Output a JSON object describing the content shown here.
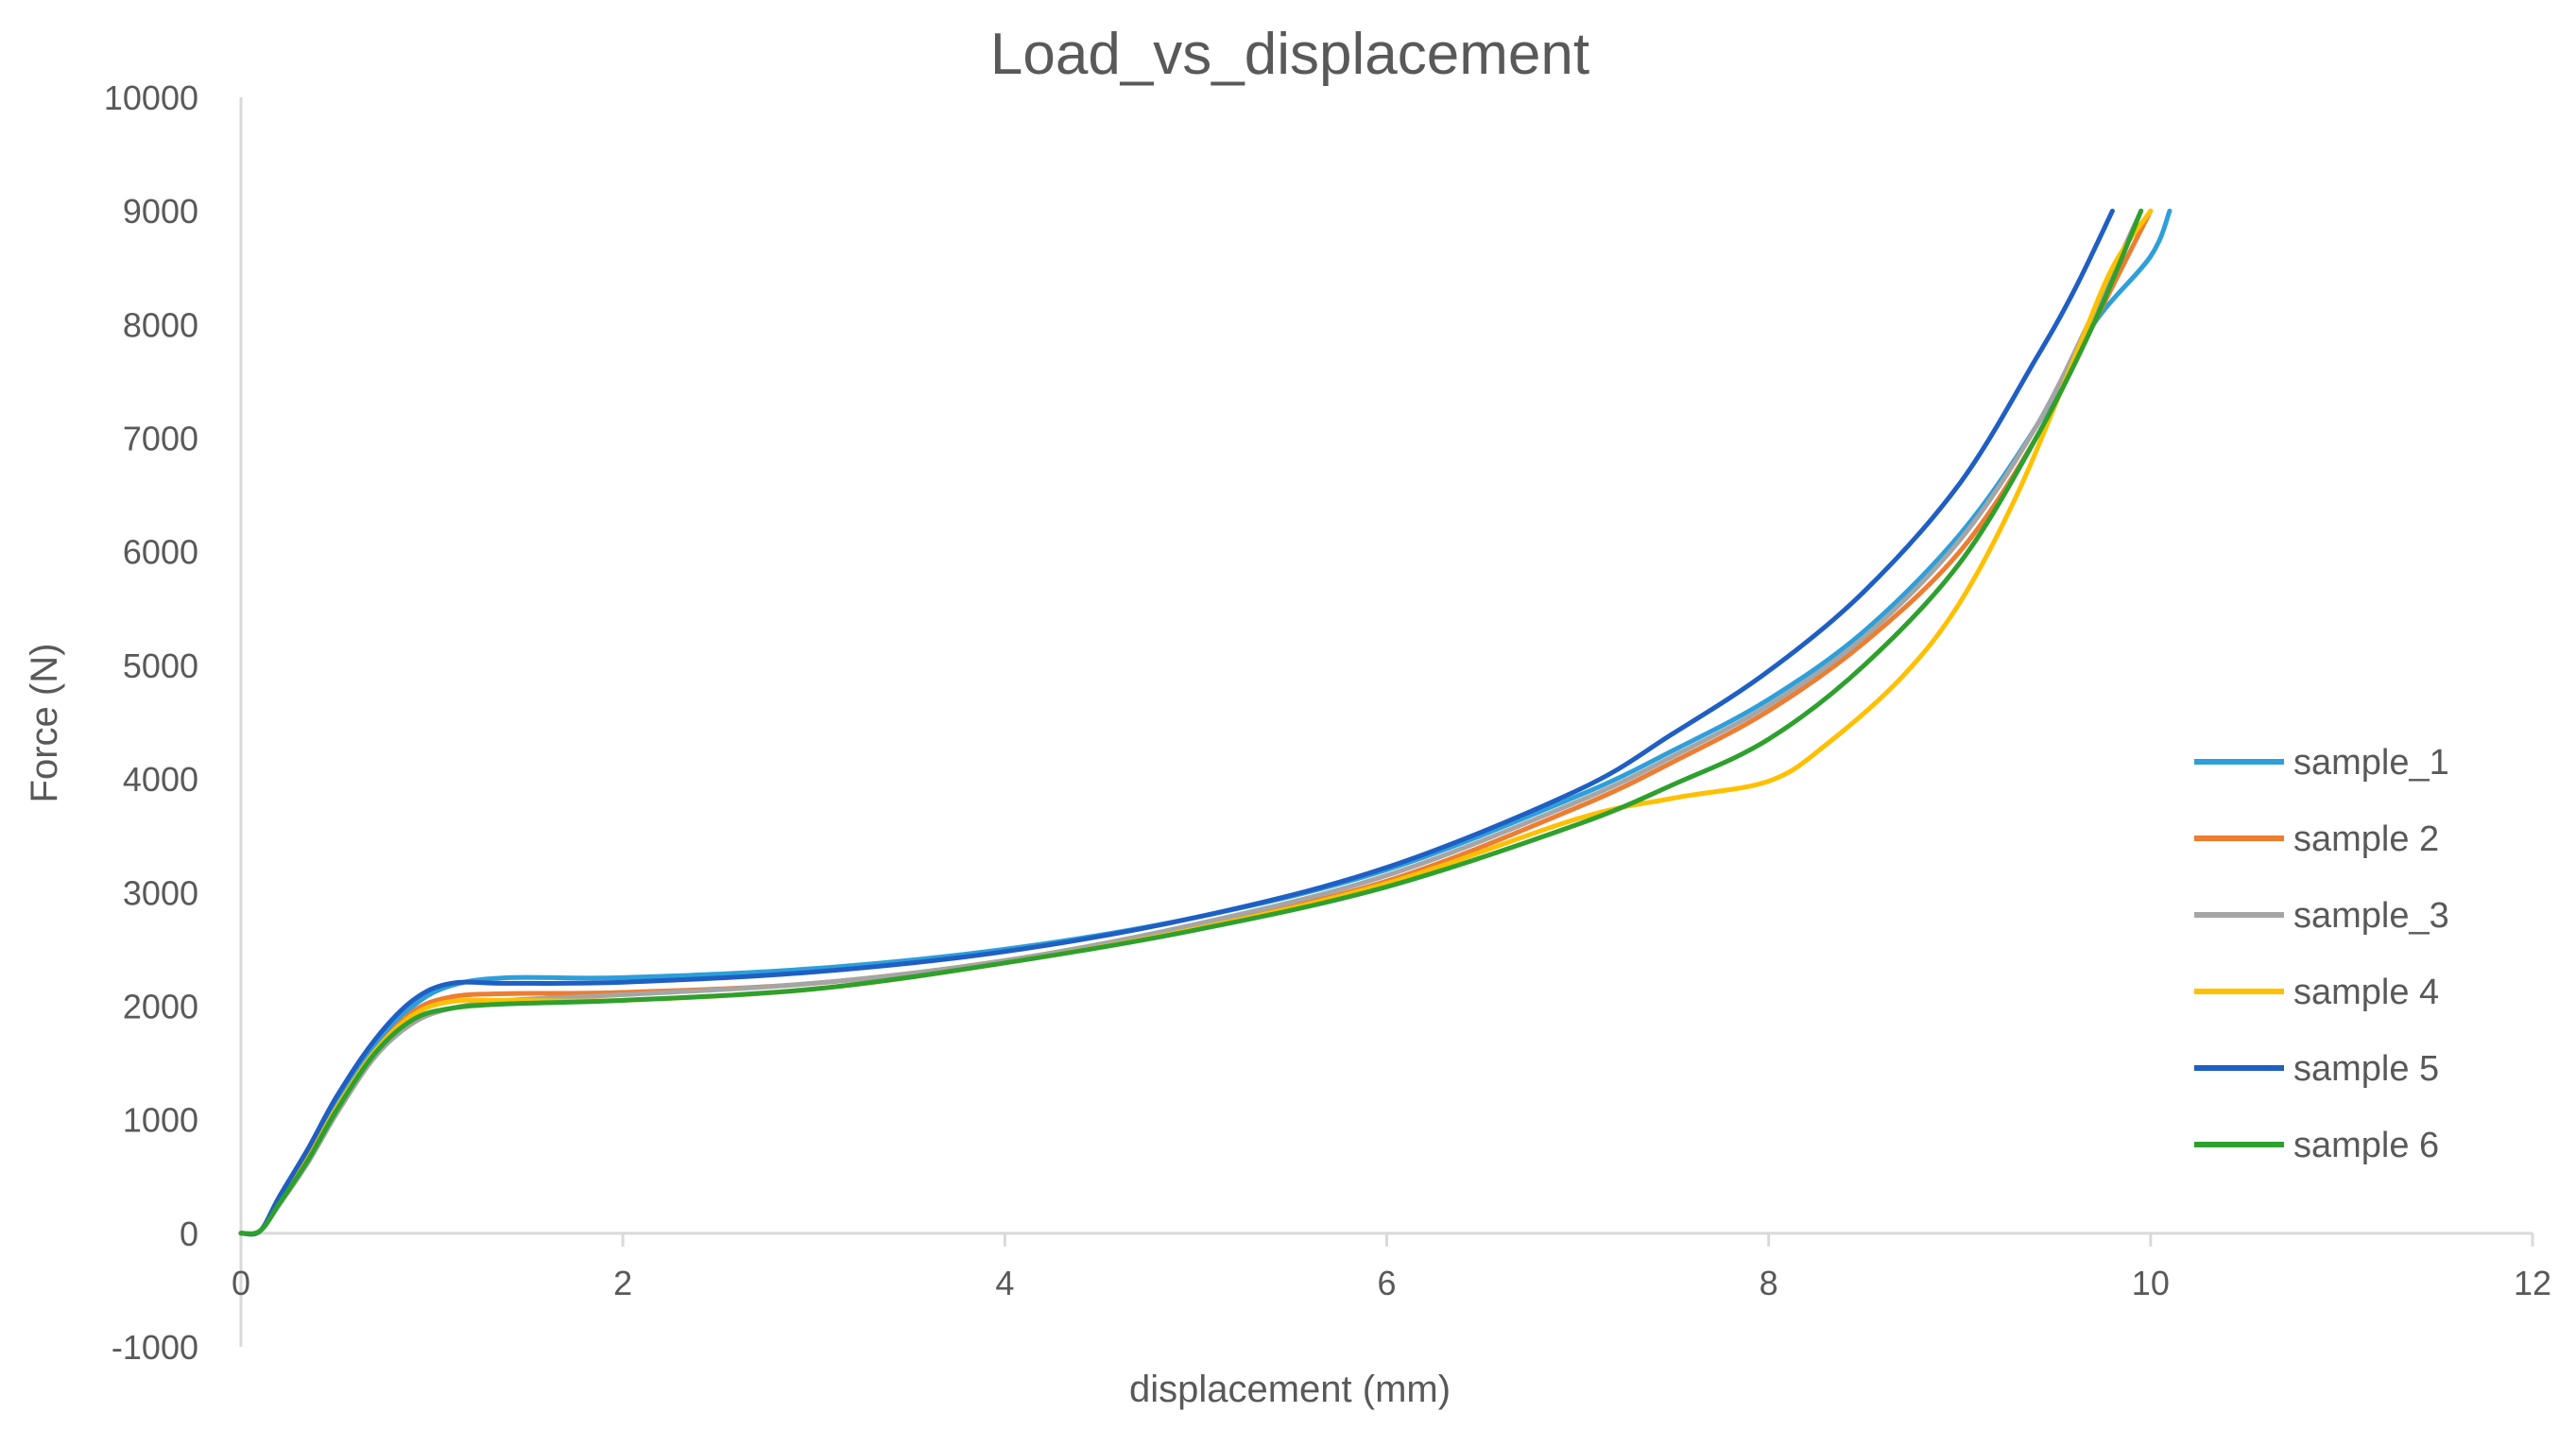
{
  "chart_data": {
    "type": "line",
    "title": "Load_vs_displacement",
    "xlabel": "displacement (mm)",
    "ylabel": "Force (N)",
    "xlim": [
      0,
      12
    ],
    "ylim": [
      -1000,
      10000
    ],
    "x_ticks": [
      0,
      2,
      4,
      6,
      8,
      10,
      12
    ],
    "y_ticks": [
      -1000,
      0,
      1000,
      2000,
      3000,
      4000,
      5000,
      6000,
      7000,
      8000,
      9000,
      10000
    ],
    "grid": false,
    "legend_position": "right",
    "series": [
      {
        "name": "sample_1",
        "color": "#2e9fd9",
        "points": [
          [
            0,
            0
          ],
          [
            0.1,
            20
          ],
          [
            0.2,
            300
          ],
          [
            0.35,
            700
          ],
          [
            0.5,
            1150
          ],
          [
            0.7,
            1650
          ],
          [
            0.9,
            2000
          ],
          [
            1.1,
            2180
          ],
          [
            1.4,
            2250
          ],
          [
            2,
            2250
          ],
          [
            3,
            2330
          ],
          [
            4,
            2500
          ],
          [
            5,
            2780
          ],
          [
            6,
            3200
          ],
          [
            7,
            3850
          ],
          [
            7.5,
            4250
          ],
          [
            8,
            4700
          ],
          [
            8.5,
            5300
          ],
          [
            9,
            6150
          ],
          [
            9.4,
            7100
          ],
          [
            9.7,
            8000
          ],
          [
            10,
            8600
          ],
          [
            10.1,
            9000
          ]
        ]
      },
      {
        "name": "sample 2",
        "color": "#ed7d31",
        "points": [
          [
            0,
            0
          ],
          [
            0.1,
            20
          ],
          [
            0.2,
            280
          ],
          [
            0.35,
            660
          ],
          [
            0.5,
            1100
          ],
          [
            0.7,
            1600
          ],
          [
            0.9,
            1950
          ],
          [
            1.1,
            2080
          ],
          [
            1.4,
            2110
          ],
          [
            2,
            2120
          ],
          [
            3,
            2200
          ],
          [
            4,
            2400
          ],
          [
            5,
            2700
          ],
          [
            6,
            3100
          ],
          [
            7,
            3750
          ],
          [
            7.5,
            4150
          ],
          [
            8,
            4600
          ],
          [
            8.5,
            5200
          ],
          [
            9,
            6000
          ],
          [
            9.4,
            7000
          ],
          [
            9.7,
            8000
          ],
          [
            10,
            9000
          ]
        ]
      },
      {
        "name": "sample_3",
        "color": "#a5a5a5",
        "points": [
          [
            0,
            0
          ],
          [
            0.1,
            20
          ],
          [
            0.2,
            250
          ],
          [
            0.35,
            620
          ],
          [
            0.5,
            1050
          ],
          [
            0.7,
            1550
          ],
          [
            0.9,
            1850
          ],
          [
            1.1,
            1980
          ],
          [
            1.4,
            2050
          ],
          [
            2,
            2100
          ],
          [
            3,
            2200
          ],
          [
            4,
            2400
          ],
          [
            5,
            2720
          ],
          [
            6,
            3150
          ],
          [
            7,
            3800
          ],
          [
            7.5,
            4200
          ],
          [
            8,
            4650
          ],
          [
            8.5,
            5250
          ],
          [
            9,
            6100
          ],
          [
            9.4,
            7100
          ],
          [
            9.7,
            8100
          ],
          [
            9.95,
            9000
          ]
        ]
      },
      {
        "name": "sample 4",
        "color": "#ffc000",
        "points": [
          [
            0,
            0
          ],
          [
            0.1,
            20
          ],
          [
            0.2,
            270
          ],
          [
            0.35,
            650
          ],
          [
            0.5,
            1100
          ],
          [
            0.7,
            1600
          ],
          [
            0.9,
            1920
          ],
          [
            1.1,
            2040
          ],
          [
            1.4,
            2050
          ],
          [
            2,
            2050
          ],
          [
            3,
            2150
          ],
          [
            4,
            2380
          ],
          [
            5,
            2680
          ],
          [
            6,
            3080
          ],
          [
            7,
            3650
          ],
          [
            7.5,
            3830
          ],
          [
            8,
            3980
          ],
          [
            8.3,
            4300
          ],
          [
            8.7,
            4900
          ],
          [
            9,
            5550
          ],
          [
            9.3,
            6500
          ],
          [
            9.6,
            7700
          ],
          [
            9.8,
            8500
          ],
          [
            10,
            9000
          ]
        ]
      },
      {
        "name": "sample 5",
        "color": "#1f5fc4",
        "points": [
          [
            0,
            0
          ],
          [
            0.1,
            20
          ],
          [
            0.2,
            320
          ],
          [
            0.35,
            740
          ],
          [
            0.5,
            1200
          ],
          [
            0.7,
            1700
          ],
          [
            0.9,
            2050
          ],
          [
            1.1,
            2200
          ],
          [
            1.4,
            2200
          ],
          [
            2,
            2210
          ],
          [
            3,
            2300
          ],
          [
            4,
            2480
          ],
          [
            5,
            2780
          ],
          [
            6,
            3220
          ],
          [
            7,
            3900
          ],
          [
            7.5,
            4400
          ],
          [
            8,
            4950
          ],
          [
            8.5,
            5650
          ],
          [
            9,
            6600
          ],
          [
            9.4,
            7700
          ],
          [
            9.6,
            8300
          ],
          [
            9.8,
            9000
          ]
        ]
      },
      {
        "name": "sample 6",
        "color": "#2ea02e",
        "points": [
          [
            0,
            0
          ],
          [
            0.1,
            20
          ],
          [
            0.2,
            260
          ],
          [
            0.35,
            640
          ],
          [
            0.5,
            1080
          ],
          [
            0.7,
            1580
          ],
          [
            0.9,
            1880
          ],
          [
            1.1,
            1980
          ],
          [
            1.4,
            2020
          ],
          [
            2,
            2050
          ],
          [
            3,
            2150
          ],
          [
            4,
            2380
          ],
          [
            5,
            2670
          ],
          [
            6,
            3050
          ],
          [
            7,
            3600
          ],
          [
            7.5,
            3950
          ],
          [
            8,
            4350
          ],
          [
            8.5,
            5000
          ],
          [
            9,
            5900
          ],
          [
            9.4,
            7000
          ],
          [
            9.7,
            8000
          ],
          [
            9.95,
            9000
          ]
        ]
      }
    ]
  }
}
